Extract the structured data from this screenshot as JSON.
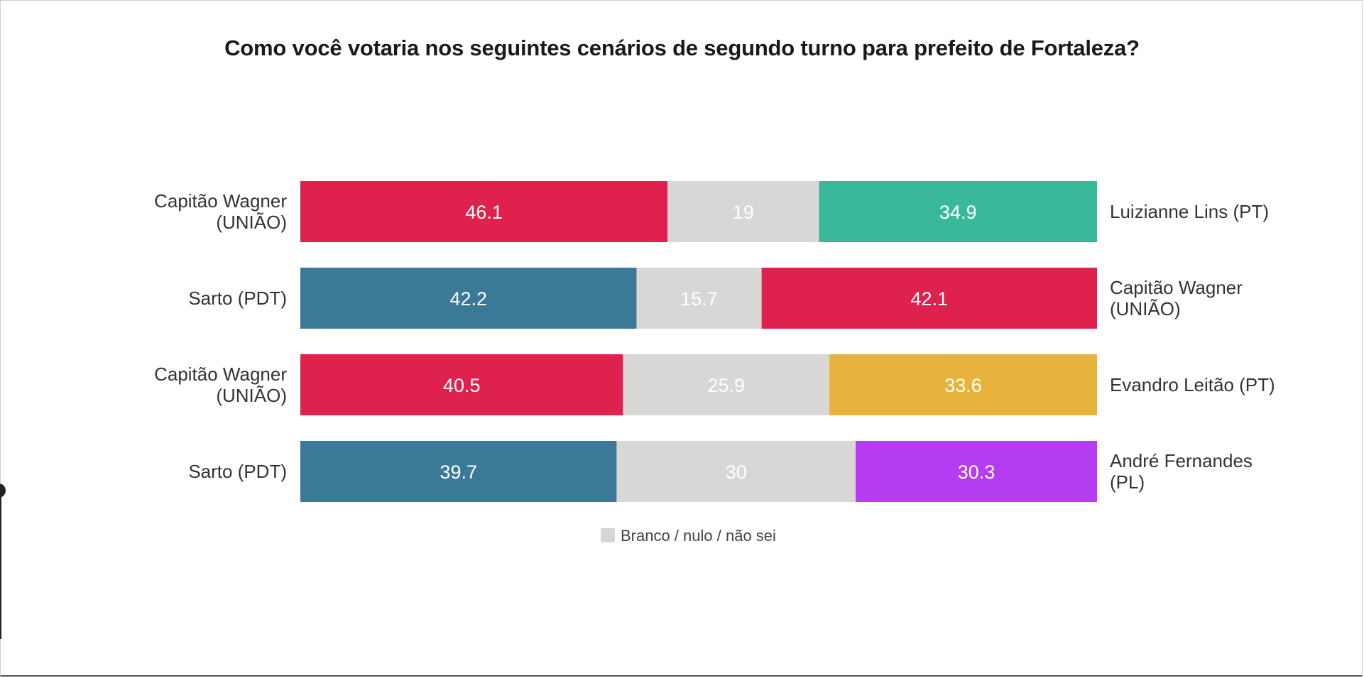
{
  "chart_data": {
    "type": "bar",
    "stacked": true,
    "orientation": "horizontal",
    "title": "Como você votaria nos seguintes cenários de segundo turno para prefeito de Fortaleza?",
    "xlim": [
      0,
      100
    ],
    "grid": false,
    "legend": {
      "position": "bottom",
      "entries": [
        {
          "label": "Branco / nulo / não sei",
          "color": "#d9d7d6"
        }
      ]
    },
    "rows": [
      {
        "left_label": [
          "Capitão Wagner",
          "(UNIÃO)"
        ],
        "right_label": [
          "Luizianne Lins (PT)"
        ],
        "values": [
          46.1,
          19,
          34.9
        ],
        "value_labels": [
          "46.1",
          "19",
          "34.9"
        ],
        "colors": [
          "#de214d",
          "#d9d7d6",
          "#3ab89a"
        ]
      },
      {
        "left_label": [
          "Sarto (PDT)"
        ],
        "right_label": [
          "Capitão Wagner",
          "(UNIÃO)"
        ],
        "values": [
          42.2,
          15.7,
          42.1
        ],
        "value_labels": [
          "42.2",
          "15.7",
          "42.1"
        ],
        "colors": [
          "#3b7a96",
          "#d9d7d6",
          "#de214d"
        ]
      },
      {
        "left_label": [
          "Capitão Wagner",
          "(UNIÃO)"
        ],
        "right_label": [
          "Evandro Leitão (PT)"
        ],
        "values": [
          40.5,
          25.9,
          33.6
        ],
        "value_labels": [
          "40.5",
          "25.9",
          "33.6"
        ],
        "colors": [
          "#de214d",
          "#d9d7d6",
          "#e8b33c"
        ]
      },
      {
        "left_label": [
          "Sarto (PDT)"
        ],
        "right_label": [
          "André Fernandes",
          "(PL)"
        ],
        "values": [
          39.7,
          30,
          30.3
        ],
        "value_labels": [
          "39.7",
          "30",
          "30.3"
        ],
        "colors": [
          "#3b7a96",
          "#d9d7d6",
          "#b63cf2"
        ]
      }
    ]
  }
}
